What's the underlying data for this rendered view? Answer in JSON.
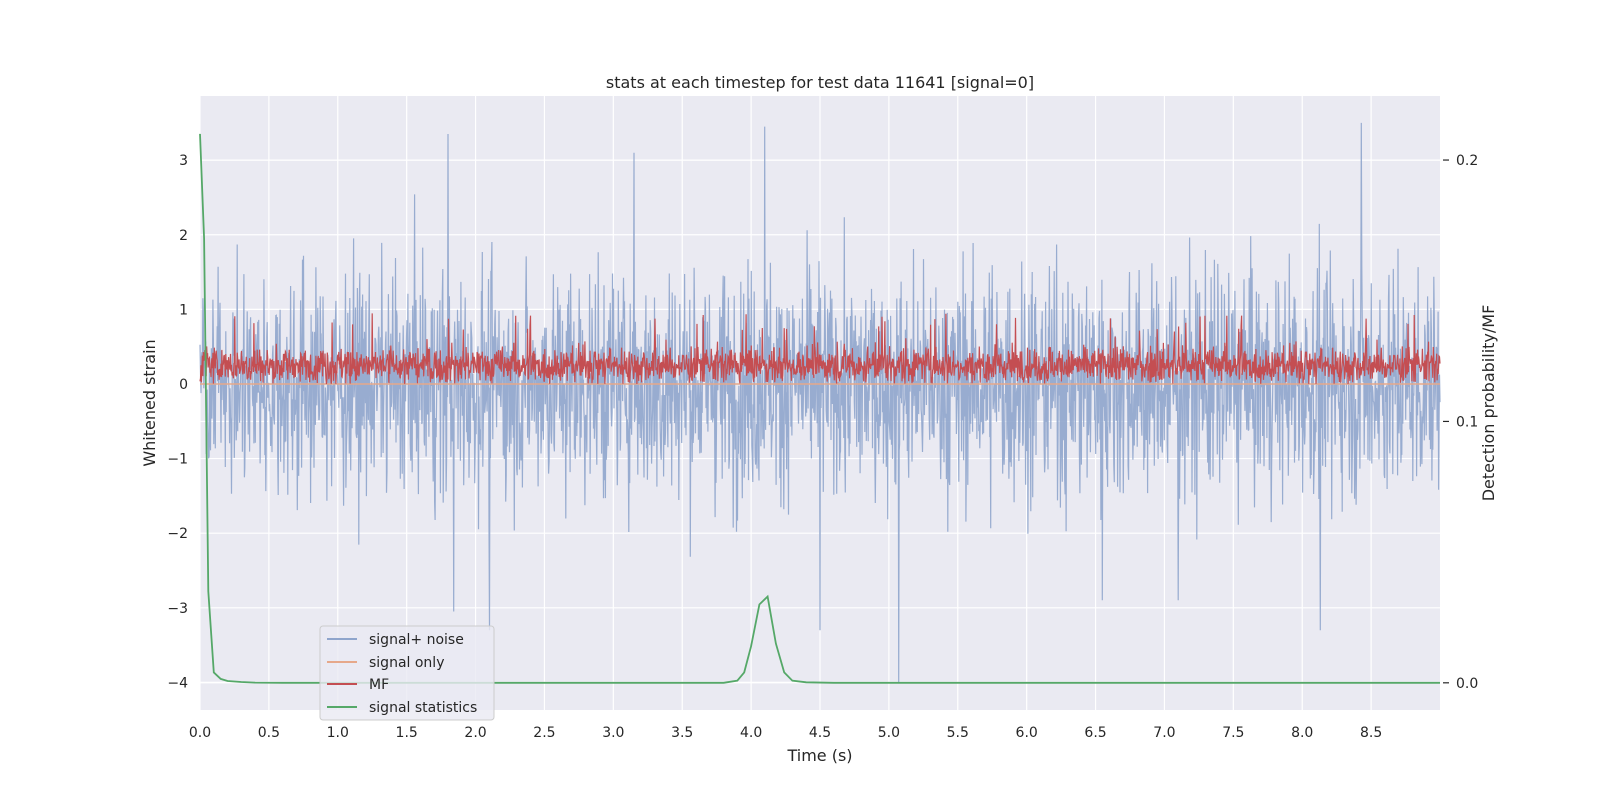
{
  "chart_data": {
    "type": "line",
    "title": "stats at each timestep for test data 11641 [signal=0]",
    "xlabel": "Time (s)",
    "ylabel": "Whitened strain",
    "y2label": "Detection probability/MF",
    "xlim": [
      0.0,
      9.0
    ],
    "ylim": [
      -4.37,
      3.86
    ],
    "y2lim": [
      -0.0104,
      0.2245
    ],
    "xticks": [
      0.0,
      0.5,
      1.0,
      1.5,
      2.0,
      2.5,
      3.0,
      3.5,
      4.0,
      4.5,
      5.0,
      5.5,
      6.0,
      6.5,
      7.0,
      7.5,
      8.0,
      8.5
    ],
    "xtick_labels": [
      "0.0",
      "0.5",
      "1.0",
      "1.5",
      "2.0",
      "2.5",
      "3.0",
      "3.5",
      "4.0",
      "4.5",
      "5.0",
      "5.5",
      "6.0",
      "6.5",
      "7.0",
      "7.5",
      "8.0",
      "8.5"
    ],
    "yticks": [
      3,
      2,
      1,
      0,
      -1,
      -2,
      -3,
      -4
    ],
    "ytick_labels": [
      "3",
      "2",
      "1",
      "0",
      "−1",
      "−2",
      "−3",
      "−4"
    ],
    "y2ticks": [
      0.2,
      0.1,
      0.0
    ],
    "y2tick_labels": [
      "0.2",
      "0.1",
      "0.0"
    ],
    "grid": true,
    "legend_position": "lower-left",
    "series": [
      {
        "name": "signal+ noise",
        "axis": "left",
        "color": "#8fa5cc",
        "kind": "noise",
        "description_values": {
          "typical_range": [
            -2.5,
            2.9
          ],
          "max": 3.5,
          "min": -4.0
        },
        "spikes": [
          [
            1.8,
            3.35
          ],
          [
            4.1,
            3.45
          ],
          [
            8.43,
            3.5
          ],
          [
            3.15,
            3.1
          ],
          [
            5.07,
            -4.0
          ],
          [
            2.1,
            -3.3
          ],
          [
            4.5,
            -3.3
          ],
          [
            8.13,
            -3.3
          ],
          [
            1.84,
            -3.05
          ],
          [
            6.55,
            -2.9
          ],
          [
            7.1,
            -2.9
          ]
        ]
      },
      {
        "name": "signal only",
        "axis": "left",
        "color": "#e6a88a",
        "x": [
          0.0,
          9.0
        ],
        "y": [
          0.0,
          0.0
        ]
      },
      {
        "name": "MF",
        "axis": "left",
        "color": "#c44e52",
        "kind": "mf",
        "description_values": {
          "typical_range": [
            0.0,
            0.6
          ],
          "max": 0.95
        }
      },
      {
        "name": "signal statistics",
        "axis": "right",
        "color": "#55a868",
        "x": [
          0.0,
          0.03,
          0.06,
          0.1,
          0.15,
          0.2,
          0.3,
          0.4,
          0.6,
          1.0,
          2.0,
          3.0,
          3.8,
          3.9,
          3.95,
          4.0,
          4.06,
          4.12,
          4.18,
          4.24,
          4.3,
          4.4,
          4.6,
          5.0,
          6.0,
          7.0,
          8.0,
          9.0
        ],
        "y": [
          0.21,
          0.17,
          0.035,
          0.004,
          0.0015,
          0.0007,
          0.0003,
          0.0001,
          0.0,
          0.0,
          0.0,
          0.0,
          0.0,
          0.0008,
          0.004,
          0.014,
          0.03,
          0.033,
          0.015,
          0.004,
          0.0008,
          0.0002,
          0.0,
          0.0,
          0.0,
          0.0,
          0.0,
          0.0
        ]
      }
    ]
  }
}
